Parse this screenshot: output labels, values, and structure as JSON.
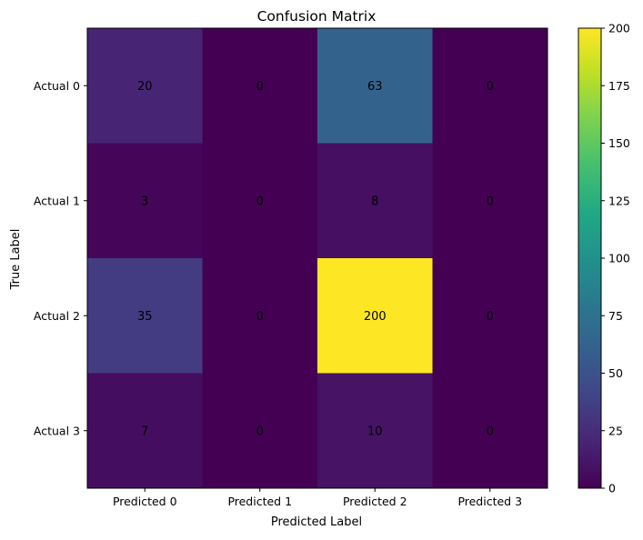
{
  "chart_data": {
    "type": "heatmap",
    "title": "Confusion Matrix",
    "xlabel": "Predicted Label",
    "ylabel": "True Label",
    "x_categories": [
      "Predicted 0",
      "Predicted 1",
      "Predicted 2",
      "Predicted 3"
    ],
    "y_categories": [
      "Actual 0",
      "Actual 1",
      "Actual 2",
      "Actual 3"
    ],
    "values": [
      [
        20,
        0,
        63,
        0
      ],
      [
        3,
        0,
        8,
        0
      ],
      [
        35,
        0,
        200,
        0
      ],
      [
        7,
        0,
        10,
        0
      ]
    ],
    "value_range": [
      0,
      200
    ],
    "colormap": "viridis",
    "colorbar_ticks": [
      0,
      25,
      50,
      75,
      100,
      125,
      150,
      175,
      200
    ],
    "annotation_color": "#000000",
    "grid": false,
    "colorbar_position": "right"
  }
}
